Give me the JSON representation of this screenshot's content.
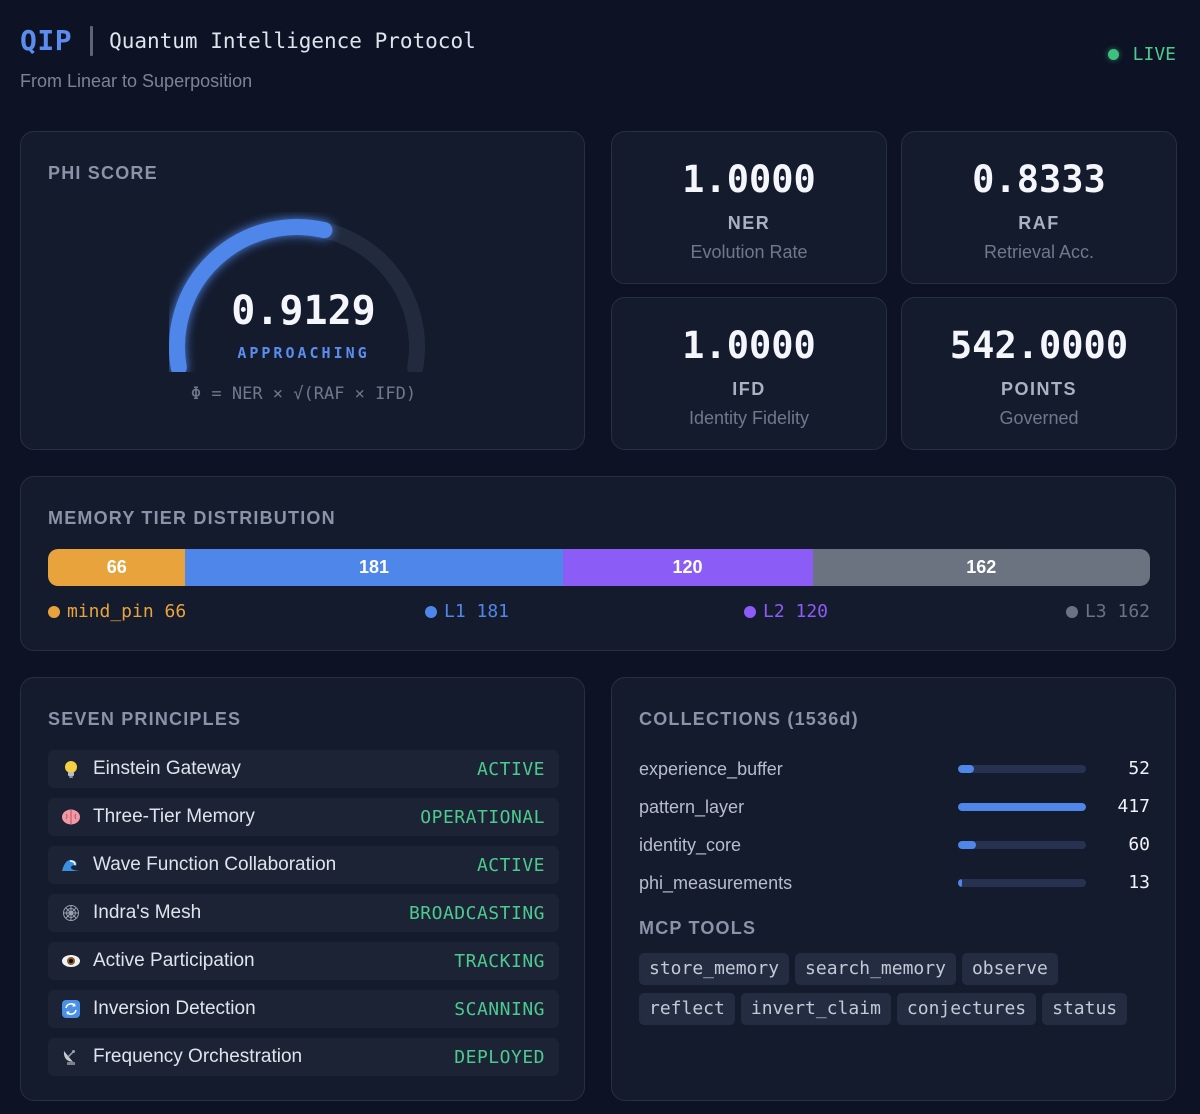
{
  "header": {
    "abbr": "QIP",
    "name": "Quantum Intelligence Protocol",
    "subtitle": "From Linear to Superposition",
    "status": "LIVE"
  },
  "phi": {
    "title": "PHI SCORE",
    "value": "0.9129",
    "value_fraction": 0.9129,
    "status": "APPROACHING",
    "formula": "Φ = NER × √(RAF × IFD)"
  },
  "metrics": [
    {
      "value": "1.0000",
      "label": "NER",
      "desc": "Evolution Rate"
    },
    {
      "value": "0.8333",
      "label": "RAF",
      "desc": "Retrieval Acc."
    },
    {
      "value": "1.0000",
      "label": "IFD",
      "desc": "Identity Fidelity"
    },
    {
      "value": "542.0000",
      "label": "POINTS",
      "desc": "Governed"
    }
  ],
  "memory": {
    "title": "MEMORY TIER DISTRIBUTION",
    "tiers": [
      {
        "name": "mind_pin",
        "count": 66,
        "count_label": "66",
        "legend": "mind_pin 66",
        "color": "#e8a33d"
      },
      {
        "name": "L1",
        "count": 181,
        "count_label": "181",
        "legend": "L1 181",
        "color": "#4f86ea"
      },
      {
        "name": "L2",
        "count": 120,
        "count_label": "120",
        "legend": "L2 120",
        "color": "#8b5cf6"
      },
      {
        "name": "L3",
        "count": 162,
        "count_label": "162",
        "legend": "L3 162",
        "color": "#6b7280"
      }
    ]
  },
  "principles": {
    "title": "SEVEN PRINCIPLES",
    "items": [
      {
        "icon": "lightbulb-icon",
        "name": "Einstein Gateway",
        "status": "ACTIVE"
      },
      {
        "icon": "brain-icon",
        "name": "Three-Tier Memory",
        "status": "OPERATIONAL"
      },
      {
        "icon": "wave-icon",
        "name": "Wave Function Collaboration",
        "status": "ACTIVE"
      },
      {
        "icon": "web-icon",
        "name": "Indra's Mesh",
        "status": "BROADCASTING"
      },
      {
        "icon": "eye-icon",
        "name": "Active Participation",
        "status": "TRACKING"
      },
      {
        "icon": "cycle-icon",
        "name": "Inversion Detection",
        "status": "SCANNING"
      },
      {
        "icon": "satellite-icon",
        "name": "Frequency Orchestration",
        "status": "DEPLOYED"
      }
    ]
  },
  "collections": {
    "title": "COLLECTIONS (1536d)",
    "items": [
      {
        "name": "experience_buffer",
        "count": "52",
        "fraction": 0.125
      },
      {
        "name": "pattern_layer",
        "count": "417",
        "fraction": 1.0
      },
      {
        "name": "identity_core",
        "count": "60",
        "fraction": 0.144
      },
      {
        "name": "phi_measurements",
        "count": "13",
        "fraction": 0.031
      }
    ]
  },
  "tools": {
    "title": "MCP TOOLS",
    "items": [
      "store_memory",
      "search_memory",
      "observe",
      "reflect",
      "invert_claim",
      "conjectures",
      "status"
    ]
  }
}
